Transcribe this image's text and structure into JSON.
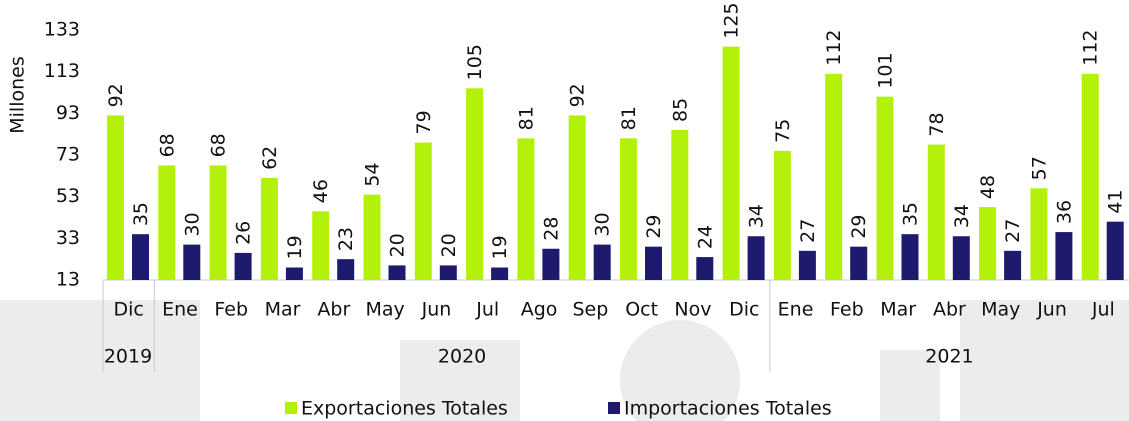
{
  "chart_data": {
    "type": "bar",
    "y_label": "Millones",
    "groups": [
      {
        "label": "2019",
        "categories": [
          "Dic"
        ]
      },
      {
        "label": "2020",
        "categories": [
          "Ene",
          "Feb",
          "Mar",
          "Abr",
          "May",
          "Jun",
          "Jul",
          "Ago",
          "Sep",
          "Oct",
          "Nov",
          "Dic"
        ]
      },
      {
        "label": "2021",
        "categories": [
          "Ene",
          "Feb",
          "Mar",
          "Abr",
          "May",
          "Jun",
          "Jul"
        ]
      }
    ],
    "series": [
      {
        "name": "Exportaciones Totales",
        "color": "#b3f00a",
        "values": [
          92,
          68,
          68,
          62,
          46,
          54,
          79,
          105,
          81,
          92,
          81,
          85,
          125,
          75,
          112,
          101,
          78,
          48,
          57,
          112
        ]
      },
      {
        "name": "Importaciones Totales",
        "color": "#1e1a6e",
        "values": [
          35,
          30,
          26,
          19,
          23,
          20,
          20,
          19,
          28,
          30,
          29,
          24,
          34,
          27,
          29,
          35,
          34,
          27,
          36,
          41
        ]
      }
    ],
    "ylim": [
      13,
      133
    ],
    "yticks": [
      13,
      33,
      53,
      73,
      93,
      113,
      133
    ],
    "legend": "bottom",
    "grid": false
  }
}
